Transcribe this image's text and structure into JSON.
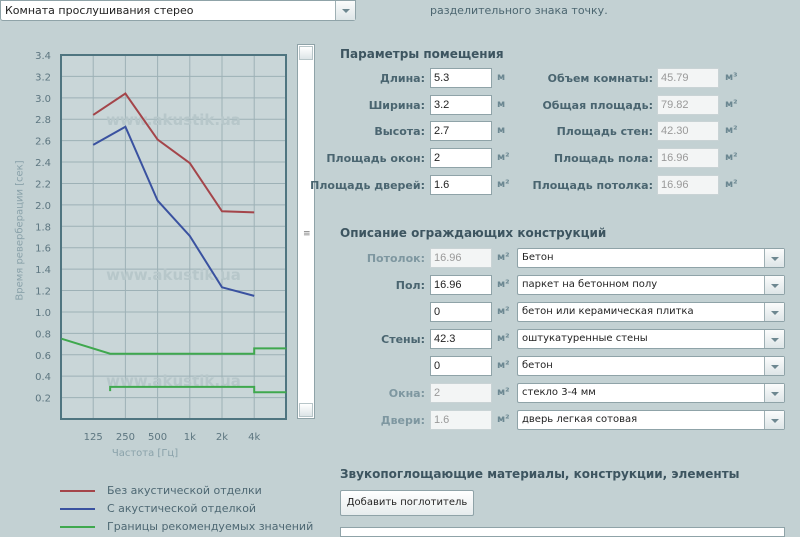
{
  "preset": {
    "value": "Комната прослушивания стерео"
  },
  "note": "разделительного знака точку.",
  "room": {
    "title": "Параметры помещения",
    "inputs": [
      {
        "label": "Длина:",
        "value": "5.3",
        "unit": "м"
      },
      {
        "label": "Ширина:",
        "value": "3.2",
        "unit": "м"
      },
      {
        "label": "Высота:",
        "value": "2.7",
        "unit": "м"
      },
      {
        "label": "Площадь окон:",
        "value": "2",
        "unit": "м²"
      },
      {
        "label": "Площадь дверей:",
        "value": "1.6",
        "unit": "м²"
      }
    ],
    "computed": [
      {
        "label": "Объем комнаты:",
        "value": "45.79",
        "unit": "м³"
      },
      {
        "label": "Общая площадь:",
        "value": "79.82",
        "unit": "м²"
      },
      {
        "label": "Площадь стен:",
        "value": "42.30",
        "unit": "м²"
      },
      {
        "label": "Площадь пола:",
        "value": "16.96",
        "unit": "м²"
      },
      {
        "label": "Площадь потолка:",
        "value": "16.96",
        "unit": "м²"
      }
    ]
  },
  "surfaces": {
    "title": "Описание ограждающих конструкций",
    "rows": [
      {
        "label": "Потолок:",
        "value": "16.96",
        "unit": "м²",
        "material": "Бетон",
        "readonly": true
      },
      {
        "label": "Пол:",
        "value": "16.96",
        "unit": "м²",
        "material": "паркет на бетонном полу",
        "readonly": false
      },
      {
        "label": "",
        "value": "0",
        "unit": "м²",
        "material": "бетон или керамическая плитка",
        "readonly": false
      },
      {
        "label": "Стены:",
        "value": "42.3",
        "unit": "м²",
        "material": "оштукатуренные стены",
        "readonly": false
      },
      {
        "label": "",
        "value": "0",
        "unit": "м²",
        "material": "бетон",
        "readonly": false
      },
      {
        "label": "Окна:",
        "value": "2",
        "unit": "м²",
        "material": "стекло 3-4 мм",
        "readonly": true
      },
      {
        "label": "Двери:",
        "value": "1.6",
        "unit": "м²",
        "material": "дверь легкая сотовая",
        "readonly": true
      }
    ]
  },
  "absorbers": {
    "title": "Звукопоглощающие материалы, конструкции, элементы",
    "add_button": "Добавить поглотитель"
  },
  "chart_data": {
    "type": "line",
    "xlabel": "Частота [Гц]",
    "ylabel": "Время реверберации [сек]",
    "categories": [
      "125",
      "250",
      "500",
      "1k",
      "2k",
      "4k"
    ],
    "ylim": [
      0,
      3.4
    ],
    "yticks": [
      "0.2",
      "0.4",
      "0.6",
      "0.8",
      "1.0",
      "1.2",
      "1.4",
      "1.6",
      "1.8",
      "2.0",
      "2.2",
      "2.4",
      "2.6",
      "2.8",
      "3.0",
      "3.2",
      "3.4"
    ],
    "grid": true,
    "watermark": "www.akustik.ua",
    "legend_position": "bottom",
    "series": [
      {
        "name": "Без акустической отделки",
        "color": "#a4454a",
        "values": [
          2.84,
          3.04,
          2.61,
          2.39,
          1.94,
          1.93
        ]
      },
      {
        "name": "С акустической отделкой",
        "color": "#3a52a0",
        "values": [
          2.56,
          2.73,
          2.04,
          1.71,
          1.23,
          1.15
        ]
      },
      {
        "name": "Границы рекомендуемых значений",
        "color": "#3fa84e",
        "upper": [
          [
            63,
            0.75
          ],
          [
            180,
            0.61
          ],
          [
            4000,
            0.61
          ],
          [
            4000,
            0.66
          ],
          [
            8000,
            0.66
          ]
        ],
        "lower": [
          [
            180,
            0.26
          ],
          [
            180,
            0.3
          ],
          [
            4000,
            0.3
          ],
          [
            4000,
            0.25
          ],
          [
            8000,
            0.25
          ]
        ]
      }
    ]
  }
}
